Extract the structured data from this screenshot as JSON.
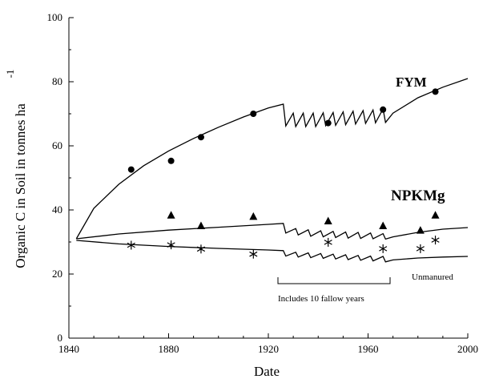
{
  "chart_data": {
    "type": "scatter",
    "title": "",
    "xlabel": "Date",
    "ylabel": "Organic C in Soil in tonnes ha",
    "ylabel_superscript": "-1",
    "xlim": [
      1840,
      2000
    ],
    "ylim": [
      0,
      100
    ],
    "x_ticks": [
      "1840",
      "1880",
      "1920",
      "1960",
      "2000"
    ],
    "y_ticks": [
      "0",
      "20",
      "40",
      "60",
      "80",
      "100"
    ],
    "grid": false,
    "legend": "none",
    "series": [
      {
        "name": "FYM",
        "marker": "circle",
        "observed": {
          "x": [
            1865,
            1881,
            1893,
            1914,
            1944,
            1966,
            1987
          ],
          "y": [
            52.6,
            55.3,
            62.7,
            70.0,
            67.1,
            71.3,
            76.9
          ]
        },
        "model": {
          "x": [
            1843,
            1850,
            1860,
            1870,
            1880,
            1890,
            1900,
            1910,
            1920,
            1926,
            1927,
            1930,
            1931,
            1934,
            1935,
            1938,
            1939,
            1942,
            1943,
            1946,
            1947,
            1950,
            1951,
            1954,
            1955,
            1958,
            1959,
            1962,
            1963,
            1966,
            1967,
            1970,
            1980,
            1990,
            2000
          ],
          "y": [
            31,
            40.5,
            48,
            53.8,
            58.4,
            62.3,
            65.8,
            69.0,
            71.8,
            73.0,
            66.2,
            70.2,
            66.0,
            70.2,
            66.0,
            70.2,
            66.0,
            70.3,
            66.3,
            70.4,
            66.4,
            70.6,
            66.6,
            70.8,
            66.8,
            71.0,
            67.0,
            71.2,
            67.2,
            71.5,
            67.3,
            70.2,
            75.0,
            78.3,
            81.0
          ]
        }
      },
      {
        "name": "NPKMg",
        "marker": "triangle",
        "observed": {
          "x": [
            1881,
            1893,
            1914,
            1944,
            1966,
            1981,
            1987
          ],
          "y": [
            38.3,
            35.0,
            37.9,
            36.5,
            35.0,
            33.6,
            38.3
          ]
        },
        "model": {
          "x": [
            1843,
            1860,
            1880,
            1900,
            1920,
            1926,
            1927,
            1931,
            1932,
            1936,
            1937,
            1941,
            1942,
            1946,
            1947,
            1951,
            1952,
            1956,
            1957,
            1961,
            1962,
            1966,
            1967,
            1970,
            1980,
            1990,
            2000
          ],
          "y": [
            31,
            32.5,
            33.7,
            34.6,
            35.5,
            35.8,
            32.8,
            34.2,
            32.2,
            33.8,
            31.8,
            33.5,
            31.6,
            33.3,
            31.4,
            33.1,
            31.2,
            33.0,
            31.1,
            32.8,
            31.0,
            32.6,
            30.9,
            31.6,
            33.0,
            34.0,
            34.5
          ]
        }
      },
      {
        "name": "Unmanured",
        "marker": "asterisk",
        "observed": {
          "x": [
            1865,
            1881,
            1893,
            1914,
            1944,
            1966,
            1981,
            1987
          ],
          "y": [
            29.0,
            29.1,
            27.8,
            26.2,
            29.9,
            27.9,
            27.9,
            30.6
          ]
        },
        "model": {
          "x": [
            1843,
            1860,
            1880,
            1900,
            1920,
            1926,
            1927,
            1931,
            1932,
            1936,
            1937,
            1941,
            1942,
            1946,
            1947,
            1951,
            1952,
            1956,
            1957,
            1961,
            1962,
            1966,
            1967,
            1970,
            1980,
            1990,
            2000
          ],
          "y": [
            30.5,
            29.4,
            28.6,
            28.0,
            27.5,
            27.3,
            25.6,
            26.8,
            25.3,
            26.6,
            25.1,
            26.4,
            24.9,
            26.2,
            24.7,
            26.0,
            24.5,
            25.8,
            24.3,
            25.6,
            24.1,
            25.5,
            23.8,
            24.4,
            25.0,
            25.3,
            25.5
          ]
        }
      }
    ],
    "annotations": {
      "fallow_note": "Includes 10 fallow years",
      "fallow_range": [
        1926,
        1968
      ]
    }
  }
}
